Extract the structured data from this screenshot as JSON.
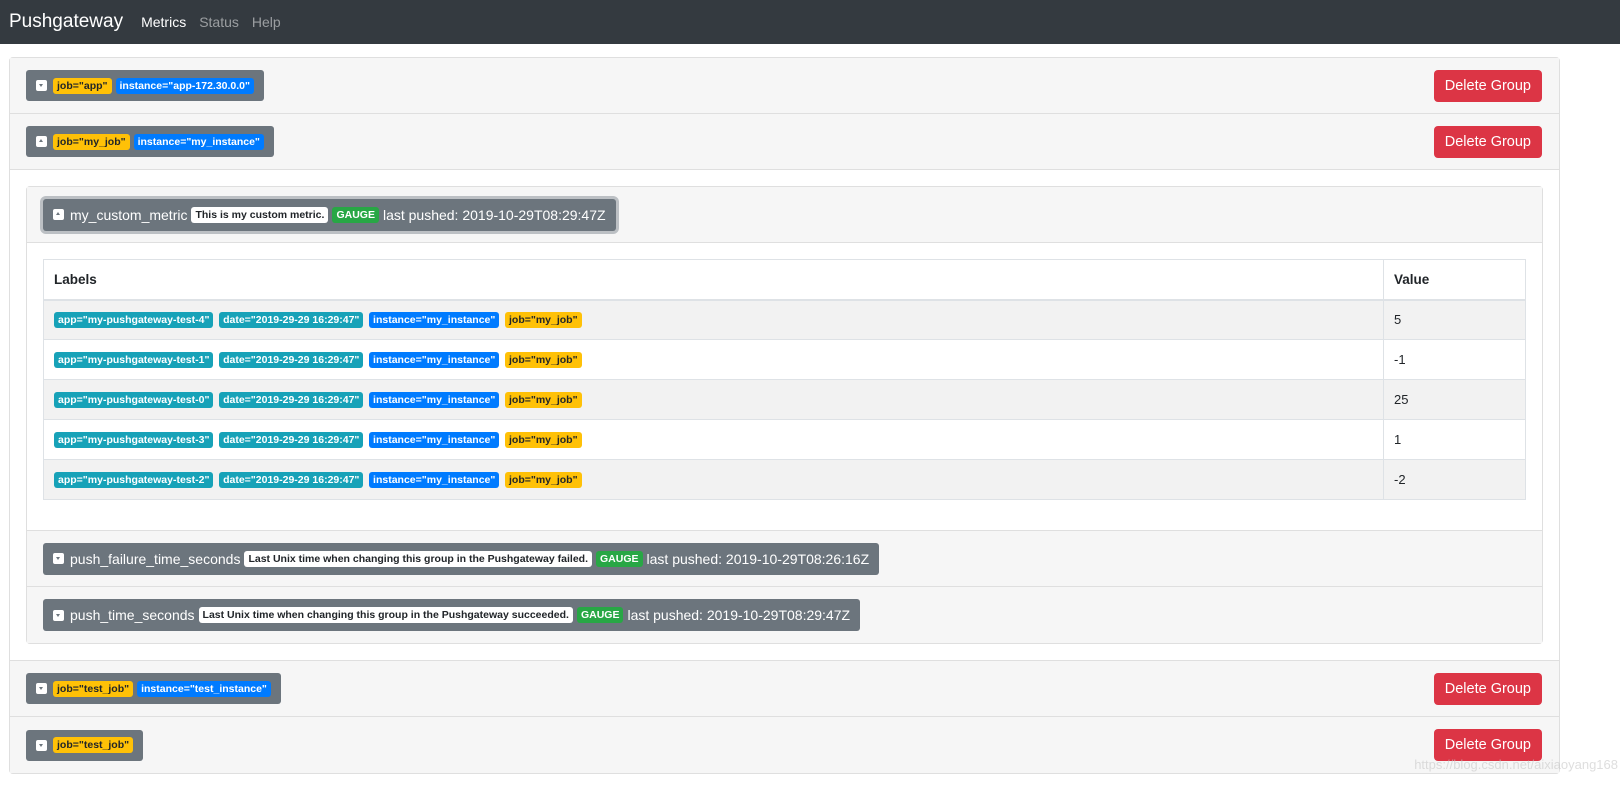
{
  "nav": {
    "brand": "Pushgateway",
    "links": [
      "Metrics",
      "Status",
      "Help"
    ]
  },
  "delete_label": "Delete Group",
  "groups": [
    {
      "labels": [
        {
          "text": "job=\"app\"",
          "kind": "job"
        },
        {
          "text": "instance=\"app-172.30.0.0\"",
          "kind": "instance"
        }
      ],
      "expanded": false
    },
    {
      "labels": [
        {
          "text": "job=\"my_job\"",
          "kind": "job"
        },
        {
          "text": "instance=\"my_instance\"",
          "kind": "instance"
        }
      ],
      "expanded": true
    },
    {
      "labels": [
        {
          "text": "job=\"test_job\"",
          "kind": "job"
        },
        {
          "text": "instance=\"test_instance\"",
          "kind": "instance"
        }
      ],
      "expanded": false
    },
    {
      "labels": [
        {
          "text": "job=\"test_job\"",
          "kind": "job"
        }
      ],
      "expanded": false
    }
  ],
  "metrics": [
    {
      "name": "my_custom_metric",
      "help": "This is my custom metric.",
      "type": "GAUGE",
      "pushed": "last pushed: 2019-10-29T08:29:47Z",
      "expanded": true
    },
    {
      "name": "push_failure_time_seconds",
      "help": "Last Unix time when changing this group in the Pushgateway failed.",
      "type": "GAUGE",
      "pushed": "last pushed: 2019-10-29T08:26:16Z",
      "expanded": false
    },
    {
      "name": "push_time_seconds",
      "help": "Last Unix time when changing this group in the Pushgateway succeeded.",
      "type": "GAUGE",
      "pushed": "last pushed: 2019-10-29T08:29:47Z",
      "expanded": false
    }
  ],
  "table": {
    "headers": [
      "Labels",
      "Value"
    ],
    "rows": [
      {
        "app": "app=\"my-pushgateway-test-4\"",
        "date": "date=\"2019-29-29 16:29:47\"",
        "instance": "instance=\"my_instance\"",
        "job": "job=\"my_job\"",
        "value": "5"
      },
      {
        "app": "app=\"my-pushgateway-test-1\"",
        "date": "date=\"2019-29-29 16:29:47\"",
        "instance": "instance=\"my_instance\"",
        "job": "job=\"my_job\"",
        "value": "-1"
      },
      {
        "app": "app=\"my-pushgateway-test-0\"",
        "date": "date=\"2019-29-29 16:29:47\"",
        "instance": "instance=\"my_instance\"",
        "job": "job=\"my_job\"",
        "value": "25"
      },
      {
        "app": "app=\"my-pushgateway-test-3\"",
        "date": "date=\"2019-29-29 16:29:47\"",
        "instance": "instance=\"my_instance\"",
        "job": "job=\"my_job\"",
        "value": "1"
      },
      {
        "app": "app=\"my-pushgateway-test-2\"",
        "date": "date=\"2019-29-29 16:29:47\"",
        "instance": "instance=\"my_instance\"",
        "job": "job=\"my_job\"",
        "value": "-2"
      }
    ]
  },
  "watermark": "https://blog.csdn.net/aixiaoyang168",
  "colors": {
    "navbar": "#343a40",
    "job": "#ffc107",
    "instance": "#007bff",
    "label": "#17a2b8",
    "gauge": "#28a745",
    "delete": "#dc3545"
  }
}
